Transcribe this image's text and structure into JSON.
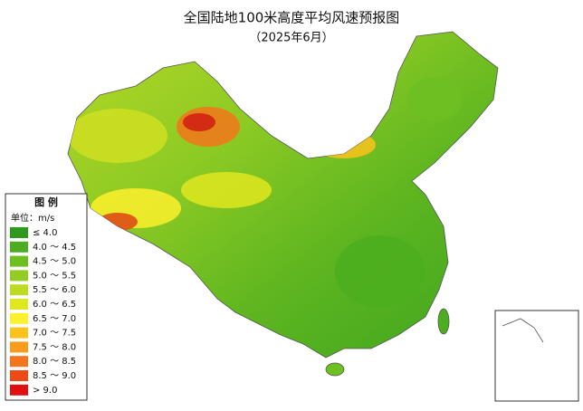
{
  "title": "全国陆地100米高度平均风速预报图",
  "subtitle": "（2025年6月）",
  "legend": {
    "title": "图 例",
    "unit": "单位：m/s",
    "items": [
      {
        "label": "≤ 4.0",
        "color": "#2e9a1c"
      },
      {
        "label": "4.0 ～ 4.5",
        "color": "#4cae1f"
      },
      {
        "label": "4.5 ～ 5.0",
        "color": "#6dbf22"
      },
      {
        "label": "5.0 ～ 5.5",
        "color": "#93cd24"
      },
      {
        "label": "5.5 ～ 6.0",
        "color": "#bcdb22"
      },
      {
        "label": "6.0 ～ 6.5",
        "color": "#e1e71e"
      },
      {
        "label": "6.5 ～ 7.0",
        "color": "#fdf02c"
      },
      {
        "label": "7.0 ～ 7.5",
        "color": "#fcc21c"
      },
      {
        "label": "7.5 ～ 8.0",
        "color": "#f99c1c"
      },
      {
        "label": "8.0 ～ 8.5",
        "color": "#f4761a"
      },
      {
        "label": "8.5 ～ 9.0",
        "color": "#ee4a16"
      },
      {
        "label": "> 9.0",
        "color": "#e01010"
      }
    ]
  }
}
